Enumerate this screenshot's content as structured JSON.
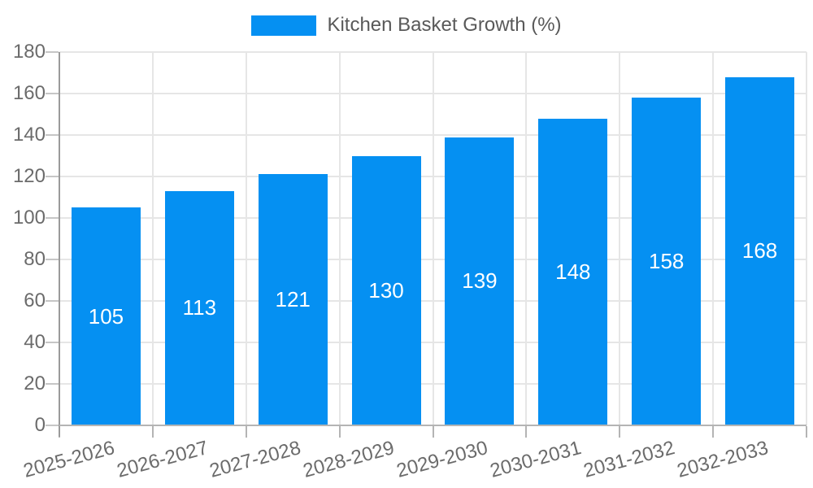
{
  "chart_data": {
    "type": "bar",
    "title": "Kitchen Basket Growth (%)",
    "categories": [
      "2025-2026",
      "2026-2027",
      "2027-2028",
      "2028-2029",
      "2029-2030",
      "2030-2031",
      "2031-2032",
      "2032-2033"
    ],
    "values": [
      105,
      113,
      121,
      130,
      139,
      148,
      158,
      168
    ],
    "xlabel": "",
    "ylabel": "",
    "ylim": [
      0,
      180
    ],
    "ytick_step": 20,
    "grid": true,
    "legend_position": "top-center",
    "bar_color": "#0590f2",
    "bar_label_color": "#ffffff",
    "axis_text_color": "#6b6b6b",
    "legend_text_color": "#595959"
  }
}
